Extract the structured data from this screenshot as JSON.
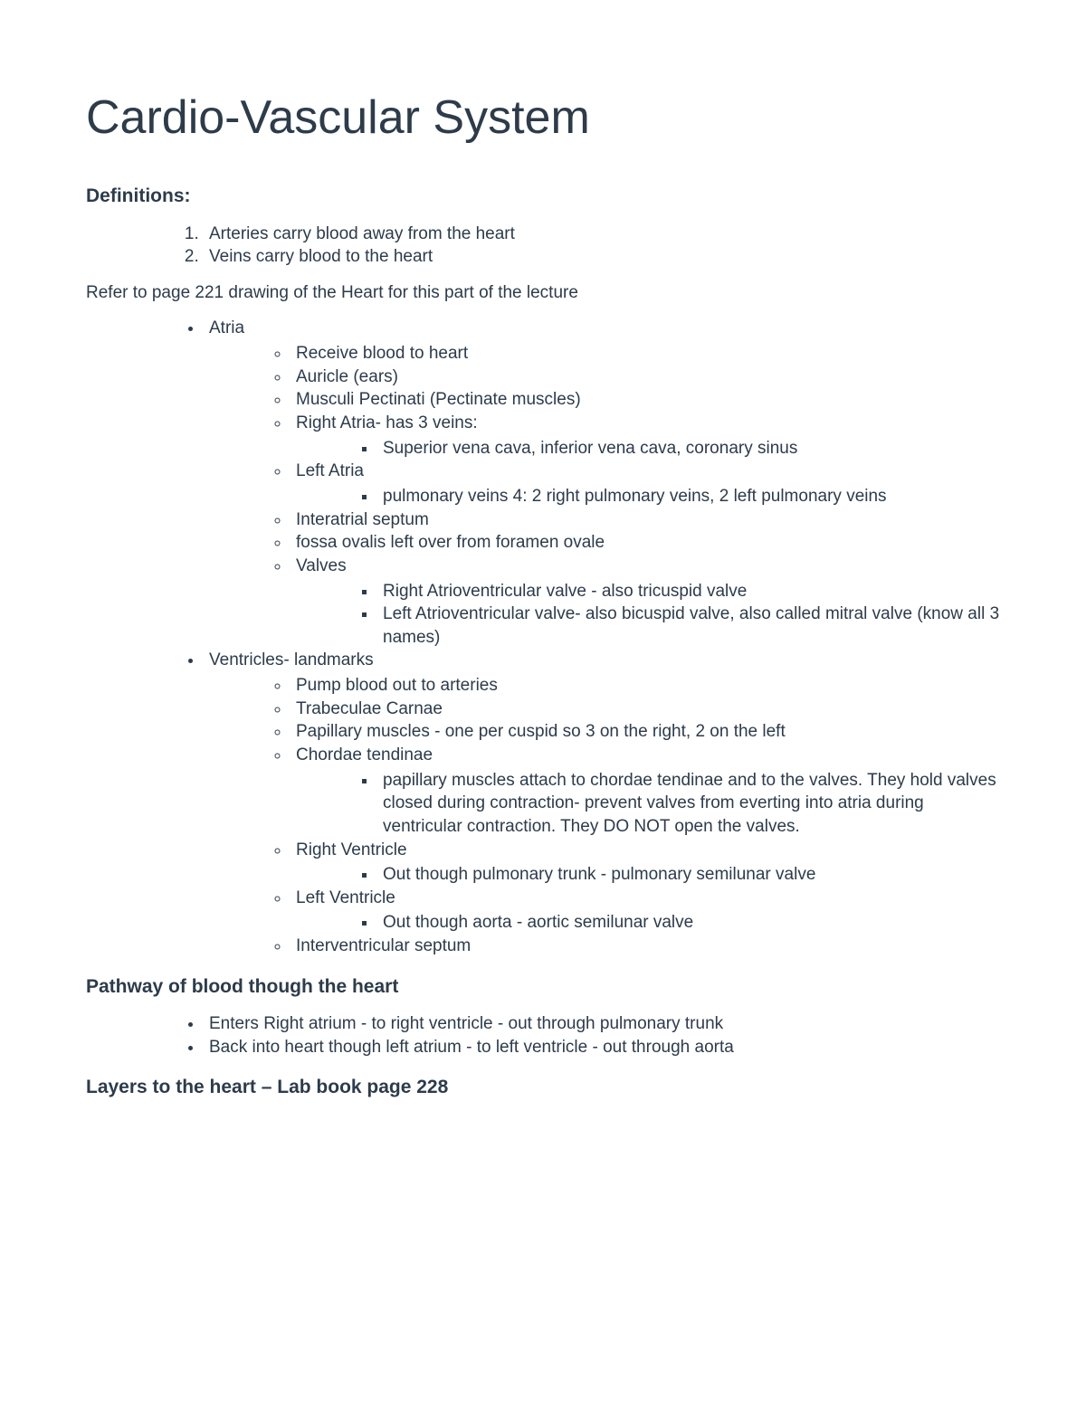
{
  "title": "Cardio-Vascular System",
  "sections": {
    "definitions": {
      "heading": "Definitions:",
      "items": [
        "Arteries carry blood away from the heart",
        "Veins carry blood to the heart"
      ]
    },
    "refer_note": "Refer to page 221 drawing of the Heart for this part of the lecture",
    "atria": {
      "label": "Atria",
      "sub": [
        "Receive blood to heart",
        "Auricle (ears)",
        "Musculi Pectinati (Pectinate muscles)"
      ],
      "right_atria": {
        "label": "Right Atria- has 3 veins:",
        "sub": [
          "Superior vena cava, inferior vena cava, coronary sinus"
        ]
      },
      "left_atria": {
        "label": "Left Atria",
        "sub": [
          "pulmonary veins 4: 2 right pulmonary veins, 2 left pulmonary veins"
        ]
      },
      "more": [
        "Interatrial septum",
        "fossa ovalis left over from foramen ovale"
      ],
      "valves": {
        "label": "Valves",
        "sub": [
          "Right Atrioventricular valve - also tricuspid valve",
          "Left Atrioventricular valve- also bicuspid valve, also called mitral valve (know all 3 names)"
        ]
      }
    },
    "ventricles": {
      "label": "Ventricles- landmarks",
      "sub": [
        "Pump blood out to arteries",
        "Trabeculae Carnae",
        "Papillary muscles - one per cuspid so 3 on the right, 2 on the left"
      ],
      "chordae": {
        "label": "Chordae tendinae",
        "sub": [
          "papillary muscles attach to chordae tendinae and to the valves. They hold valves closed during contraction- prevent valves from everting into atria during ventricular contraction. They DO NOT open the valves."
        ]
      },
      "right_ventricle": {
        "label": "Right Ventricle",
        "sub": [
          "Out though pulmonary trunk - pulmonary semilunar valve"
        ]
      },
      "left_ventricle": {
        "label": "Left Ventricle",
        "sub": [
          "Out though aorta - aortic semilunar valve"
        ]
      },
      "more": [
        "Interventricular septum"
      ]
    },
    "pathway": {
      "heading": "Pathway of blood though the heart",
      "items": [
        "Enters Right atrium - to right ventricle - out through pulmonary trunk",
        "Back into heart though left atrium - to left ventricle - out through aorta"
      ]
    },
    "layers": {
      "heading": "Layers to the heart – Lab book page 228"
    }
  }
}
